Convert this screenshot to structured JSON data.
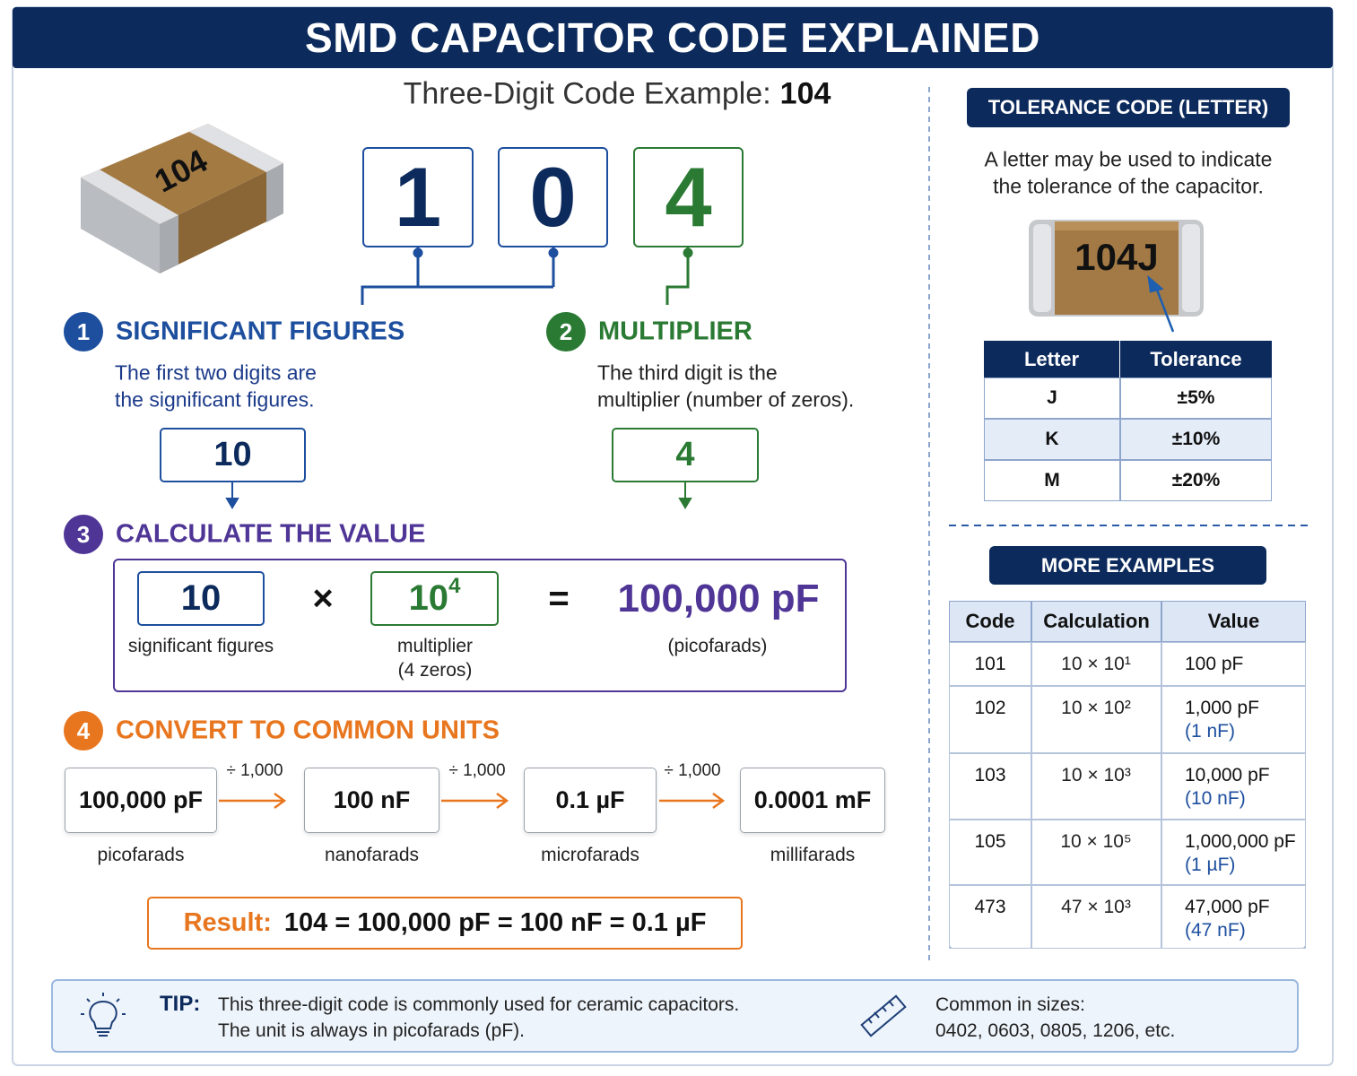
{
  "header": {
    "title": "SMD CAPACITOR CODE EXPLAINED"
  },
  "example": {
    "label": "Three-Digit Code Example:",
    "code": "104",
    "chip_marking": "104",
    "digits": [
      "1",
      "0",
      "4"
    ]
  },
  "steps": [
    {
      "number": "1",
      "title": "SIGNIFICANT FIGURES",
      "description": [
        "The first two digits are",
        "the significant figures."
      ],
      "value": "10"
    },
    {
      "number": "2",
      "title": "MULTIPLIER",
      "description": [
        "The third digit is the",
        "multiplier (number of zeros)."
      ],
      "value": "4"
    },
    {
      "number": "3",
      "title": "CALCULATE THE VALUE"
    },
    {
      "number": "4",
      "title": "CONVERT TO COMMON UNITS"
    }
  ],
  "calculation": {
    "significant": "10",
    "significant_label": "significant figures",
    "operator": "×",
    "multiplier_base": "10",
    "multiplier_exponent": "4",
    "multiplier_label": [
      "multiplier",
      "(4 zeros)"
    ],
    "equals": "=",
    "result": "100,000 pF",
    "result_label": "(picofarads)"
  },
  "conversions": {
    "units": [
      {
        "value": "100,000 pF",
        "name": "picofarads"
      },
      {
        "value": "100 nF",
        "name": "nanofarads"
      },
      {
        "value": "0.1 µF",
        "name": "microfarads"
      },
      {
        "value": "0.0001 mF",
        "name": "millifarads"
      }
    ],
    "operations": [
      "÷ 1,000",
      "÷ 1,000",
      "÷ 1,000"
    ]
  },
  "result": {
    "label": "Result:",
    "expression": "104 = 100,000 pF = 100 nF = 0.1 µF"
  },
  "tolerance": {
    "title": "TOLERANCE CODE (LETTER)",
    "description": [
      "A letter may be used to indicate",
      "the tolerance of the capacitor."
    ],
    "chip_marking": "104J",
    "columns": [
      "Letter",
      "Tolerance"
    ],
    "rows": [
      [
        "J",
        "±5%"
      ],
      [
        "K",
        "±10%"
      ],
      [
        "M",
        "±20%"
      ]
    ]
  },
  "examples": {
    "title": "MORE EXAMPLES",
    "columns": [
      "Code",
      "Calculation",
      "Value"
    ],
    "rows": [
      {
        "code": "101",
        "calculation": "10 × 10¹",
        "value": "100 pF"
      },
      {
        "code": "102",
        "calculation": "10 × 10²",
        "value": "1,000 pF",
        "alternate": "(1 nF)"
      },
      {
        "code": "103",
        "calculation": "10 × 10³",
        "value": "10,000 pF",
        "alternate": "(10 nF)"
      },
      {
        "code": "105",
        "calculation": "10 × 10⁵",
        "value": "1,000,000 pF",
        "alternate": "(1 µF)"
      },
      {
        "code": "473",
        "calculation": "47 × 10³",
        "value": "47,000 pF",
        "alternate": "(47 nF)"
      }
    ]
  },
  "tip": {
    "label": "TIP:",
    "lines": [
      "This three-digit code is commonly used for ceramic capacitors.",
      "The unit is always in picofarads (pF)."
    ]
  },
  "sizes": {
    "lines": [
      "Common in sizes:",
      "0402, 0603, 0805, 1206, etc."
    ]
  }
}
